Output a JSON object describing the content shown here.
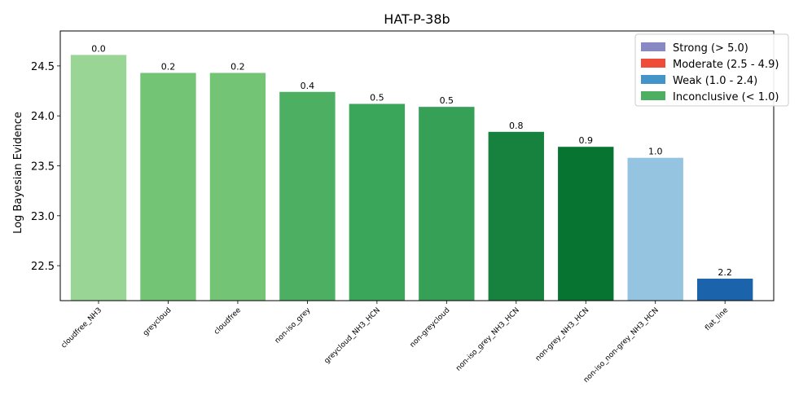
{
  "chart_data": {
    "type": "bar",
    "title": "HAT-P-38b",
    "xlabel": "",
    "ylabel": "Log Bayesian Evidence",
    "ylim": [
      22.15,
      24.85
    ],
    "yticks": [
      22.5,
      23.0,
      23.5,
      24.0,
      24.5
    ],
    "ytick_labels": [
      "22.5",
      "23.0",
      "23.5",
      "24.0",
      "24.5"
    ],
    "categories": [
      "cloudfree_NH3",
      "greycloud",
      "cloudfree",
      "non-iso_grey",
      "greycloud_NH3_HCN",
      "non-greycloud",
      "non-iso_grey_NH3_HCN",
      "non-grey_NH3_HCN",
      "non-iso_non-grey_NH3_HCN",
      "flat_line"
    ],
    "values": [
      24.61,
      24.43,
      24.43,
      24.24,
      24.12,
      24.09,
      23.84,
      23.69,
      23.58,
      22.37
    ],
    "bar_labels": [
      "0.0",
      "0.2",
      "0.2",
      "0.4",
      "0.5",
      "0.5",
      "0.8",
      "0.9",
      "1.0",
      "2.2"
    ],
    "colors": [
      "#99d594",
      "#74c476",
      "#74c476",
      "#4daf62",
      "#3aa65a",
      "#35a056",
      "#17813e",
      "#087432",
      "#94c4df",
      "#1b64ab"
    ],
    "grid": false,
    "legend": {
      "position": "top-right",
      "entries": [
        {
          "label": "Strong (> 5.0)",
          "color": "#8888c4"
        },
        {
          "label": "Moderate (2.5 - 4.9)",
          "color": "#ef4d3a"
        },
        {
          "label": "Weak (1.0 - 2.4)",
          "color": "#4394c8"
        },
        {
          "label": "Inconclusive (< 1.0)",
          "color": "#4daf62"
        }
      ]
    }
  }
}
